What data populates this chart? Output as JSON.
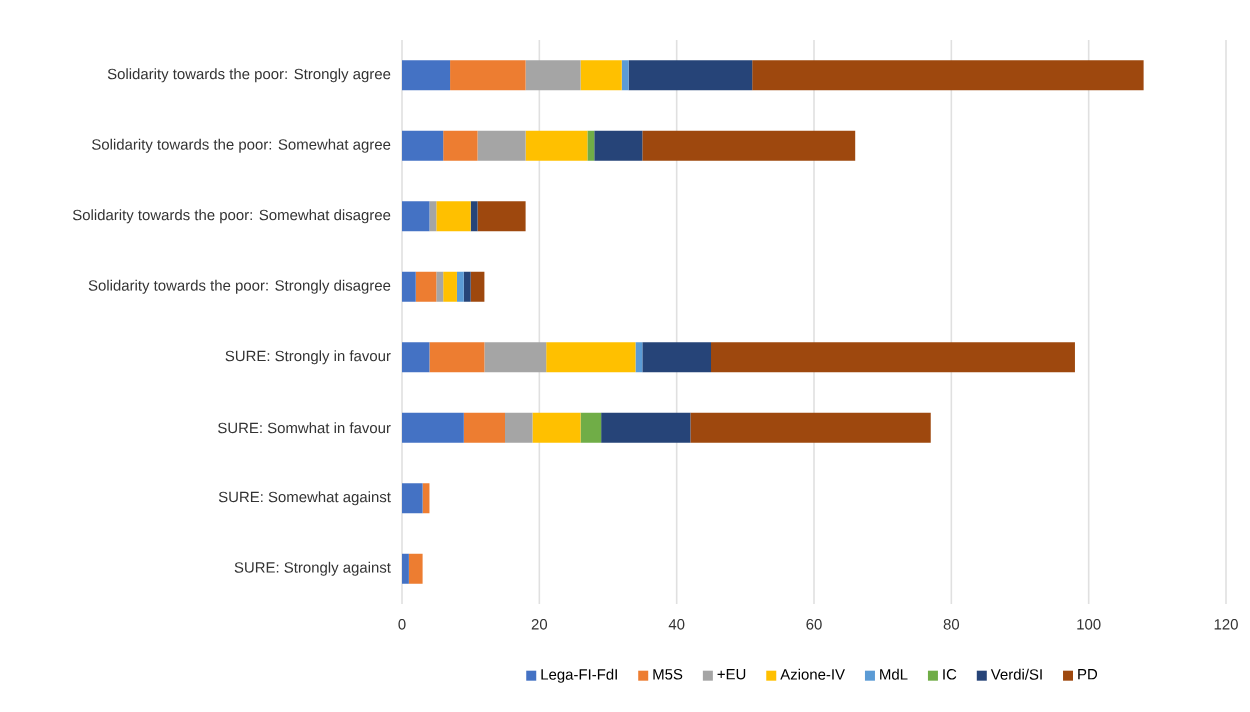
{
  "chart_data": {
    "type": "bar",
    "orientation": "horizontal",
    "stacked": true,
    "categories": [
      "Solidarity towards the poor: Strongly agree",
      "Solidarity towards the poor: Somewhat agree",
      "Solidarity towards the poor: Somewhat disagree",
      "Solidarity towards the poor: Strongly disagree",
      "SURE: Strongly in favour",
      "SURE: Somwhat in favour",
      "SURE: Somewhat against",
      "SURE: Strongly against"
    ],
    "series": [
      {
        "name": "Lega-FI-FdI",
        "color": "#4472c4",
        "values": [
          7,
          6,
          4,
          2,
          4,
          9,
          3,
          1
        ]
      },
      {
        "name": "M5S",
        "color": "#ed7d31",
        "values": [
          11,
          5,
          0,
          3,
          8,
          6,
          1,
          2
        ]
      },
      {
        "name": "+EU",
        "color": "#a5a5a5",
        "values": [
          8,
          7,
          1,
          1,
          9,
          4,
          0,
          0
        ]
      },
      {
        "name": "Azione-IV",
        "color": "#ffc000",
        "values": [
          6,
          9,
          5,
          2,
          13,
          7,
          0,
          0
        ]
      },
      {
        "name": "MdL",
        "color": "#5b9bd5",
        "values": [
          1,
          0,
          0,
          1,
          1,
          0,
          0,
          0
        ]
      },
      {
        "name": "IC",
        "color": "#70ad47",
        "values": [
          0,
          1,
          0,
          0,
          0,
          3,
          0,
          0
        ]
      },
      {
        "name": "Verdi/SI",
        "color": "#264478",
        "values": [
          18,
          7,
          1,
          1,
          10,
          13,
          0,
          0
        ]
      },
      {
        "name": "PD",
        "color": "#9e480e",
        "values": [
          57,
          31,
          7,
          2,
          53,
          35,
          0,
          0
        ]
      }
    ],
    "xlim": [
      0,
      120
    ],
    "xticks": [
      0,
      20,
      40,
      60,
      80,
      100,
      120
    ],
    "grid": "x",
    "legend": "bottom"
  }
}
